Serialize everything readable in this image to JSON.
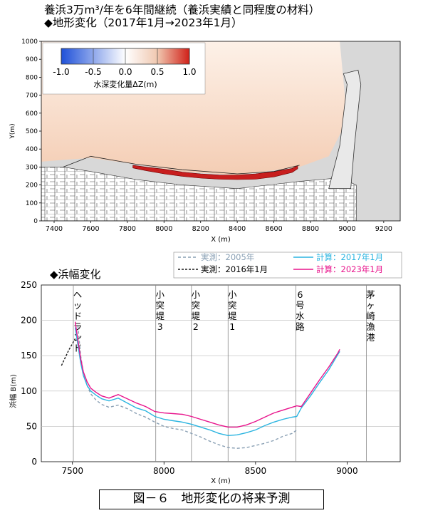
{
  "header": {
    "line1": "養浜3万m³/年を6年間継続（養浜実績と同程度の材料）",
    "line2": "◆地形変化（2017年1月→2023年1月）"
  },
  "chart_data": [
    {
      "type": "heatmap",
      "xlabel": "X (m)",
      "ylabel": "Y(m)",
      "xlim": [
        7330,
        9290
      ],
      "ylim": [
        0,
        1000
      ],
      "x_ticks": [
        "7400",
        "7600",
        "7800",
        "8000",
        "8200",
        "8400",
        "8600",
        "8800",
        "9000",
        "9200"
      ],
      "y_ticks": [
        "0",
        "100",
        "200",
        "300",
        "400",
        "500",
        "600",
        "700",
        "800",
        "900",
        "1000"
      ],
      "colorbar": {
        "title": "水深変化量ΔZ(m)",
        "ticks": [
          "-1.0",
          "-0.5",
          "0.0",
          "0.5",
          "1.0"
        ],
        "min": -1.0,
        "max": 1.0,
        "colors": [
          "#1e50d8",
          "#ffffff",
          "#f0c8b0",
          "#d02018"
        ]
      },
      "accretion_band": {
        "label": "",
        "x": [
          7830,
          7900,
          8000,
          8100,
          8200,
          8300,
          8400,
          8500,
          8600,
          8700,
          8730
        ],
        "y_lower": [
          295,
          280,
          262,
          248,
          238,
          232,
          230,
          232,
          245,
          270,
          290
        ],
        "y_upper": [
          310,
          300,
          288,
          272,
          262,
          256,
          255,
          262,
          275,
          292,
          308
        ],
        "dz": 1.0
      }
    },
    {
      "type": "line",
      "title": "◆浜幅変化",
      "xlabel": "X (m)",
      "ylabel": "浜幅 B(m)",
      "xlim": [
        7330,
        9290
      ],
      "ylim": [
        0,
        250
      ],
      "x_ticks": [
        7500,
        8000,
        8500,
        9000
      ],
      "y_ticks": [
        0,
        50,
        100,
        150,
        200,
        250
      ],
      "grid": true,
      "legend_position": "top-right",
      "structures": [
        {
          "label": "ヘッドランド",
          "x": 7505
        },
        {
          "label": "小突堤3",
          "x": 7955
        },
        {
          "label": "小突堤2",
          "x": 8150
        },
        {
          "label": "小突堤1",
          "x": 8350
        },
        {
          "label": "6号水路",
          "x": 8720
        },
        {
          "label": "茅ヶ崎漁港",
          "x": 9105
        }
      ],
      "series": [
        {
          "name": "実測：2005年",
          "color": "#8aa0b4",
          "dash": "4,3",
          "x": [
            7530,
            7545,
            7560,
            7580,
            7600,
            7630,
            7660,
            7700,
            7750,
            7800,
            7850,
            7900,
            7950,
            8000,
            8050,
            8100,
            8150,
            8200,
            8250,
            8300,
            8350,
            8400,
            8450,
            8500,
            8550,
            8600,
            8650,
            8700,
            8725
          ],
          "y": [
            192,
            150,
            125,
            108,
            96,
            87,
            81,
            77,
            80,
            75,
            68,
            63,
            56,
            50,
            47,
            45,
            40,
            35,
            29,
            24,
            20,
            19,
            20,
            23,
            26,
            30,
            36,
            40,
            45
          ]
        },
        {
          "name": "計算：2017年1月",
          "color": "#2ab4e0",
          "dash": "",
          "x": [
            7515,
            7530,
            7545,
            7560,
            7580,
            7600,
            7630,
            7660,
            7700,
            7750,
            7800,
            7850,
            7900,
            7950,
            8000,
            8050,
            8100,
            8150,
            8200,
            8250,
            8300,
            8350,
            8400,
            8450,
            8500,
            8550,
            8600,
            8650,
            8700,
            8725,
            8750,
            8800,
            8850,
            8900,
            8950,
            8960
          ],
          "y": [
            190,
            165,
            140,
            122,
            108,
            100,
            94,
            89,
            86,
            90,
            83,
            76,
            72,
            64,
            60,
            58,
            56,
            53,
            49,
            45,
            40,
            37,
            38,
            41,
            45,
            51,
            56,
            60,
            63,
            64,
            76,
            93,
            112,
            130,
            152,
            156
          ]
        },
        {
          "name": "計算：2023年1月",
          "color": "#e8148c",
          "dash": "",
          "x": [
            7515,
            7530,
            7545,
            7560,
            7580,
            7600,
            7630,
            7660,
            7700,
            7750,
            7800,
            7850,
            7900,
            7950,
            8000,
            8050,
            8100,
            8150,
            8200,
            8250,
            8300,
            8350,
            8400,
            8450,
            8500,
            8550,
            8600,
            8650,
            8700,
            8725,
            8750,
            8800,
            8850,
            8900,
            8950,
            8960
          ],
          "y": [
            198,
            172,
            146,
            127,
            113,
            104,
            98,
            93,
            90,
            95,
            89,
            83,
            78,
            71,
            69,
            68,
            67,
            64,
            60,
            56,
            52,
            49,
            49,
            52,
            57,
            63,
            69,
            73,
            77,
            79,
            78,
            97,
            116,
            134,
            154,
            159
          ]
        },
        {
          "name": "実測：2016年1月",
          "color": "#1a1a1a",
          "dash": "3,2",
          "x": [
            7440,
            7460,
            7480,
            7500,
            7515
          ],
          "y": [
            136,
            147,
            158,
            167,
            174
          ]
        }
      ]
    }
  ],
  "caption": "図－６　地形変化の将来予測"
}
